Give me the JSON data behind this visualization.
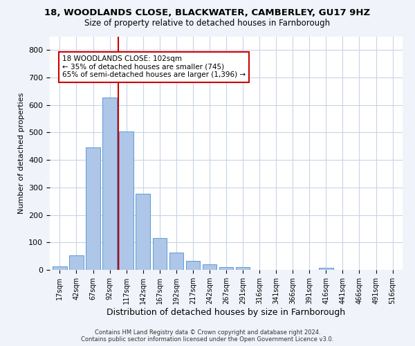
{
  "title_line1": "18, WOODLANDS CLOSE, BLACKWATER, CAMBERLEY, GU17 9HZ",
  "title_line2": "Size of property relative to detached houses in Farnborough",
  "xlabel": "Distribution of detached houses by size in Farnborough",
  "ylabel": "Number of detached properties",
  "bin_labels": [
    "17sqm",
    "42sqm",
    "67sqm",
    "92sqm",
    "117sqm",
    "142sqm",
    "167sqm",
    "192sqm",
    "217sqm",
    "242sqm",
    "267sqm",
    "291sqm",
    "316sqm",
    "341sqm",
    "366sqm",
    "391sqm",
    "416sqm",
    "441sqm",
    "466sqm",
    "491sqm",
    "516sqm"
  ],
  "bar_values": [
    12,
    52,
    447,
    627,
    503,
    278,
    117,
    63,
    34,
    20,
    9,
    9,
    0,
    0,
    0,
    0,
    8,
    0,
    0,
    0,
    0
  ],
  "bar_color": "#aec6e8",
  "bar_edge_color": "#5b9bd5",
  "property_bin_index": 3,
  "vline_color": "#cc0000",
  "annotation_text": "18 WOODLANDS CLOSE: 102sqm\n← 35% of detached houses are smaller (745)\n65% of semi-detached houses are larger (1,396) →",
  "annotation_box_color": "white",
  "annotation_box_edge": "#cc0000",
  "ylim": [
    0,
    850
  ],
  "yticks": [
    0,
    100,
    200,
    300,
    400,
    500,
    600,
    700,
    800
  ],
  "footer_line1": "Contains HM Land Registry data © Crown copyright and database right 2024.",
  "footer_line2": "Contains public sector information licensed under the Open Government Licence v3.0.",
  "background_color": "#f0f4fa",
  "plot_background": "#ffffff",
  "grid_color": "#c8d4e8"
}
